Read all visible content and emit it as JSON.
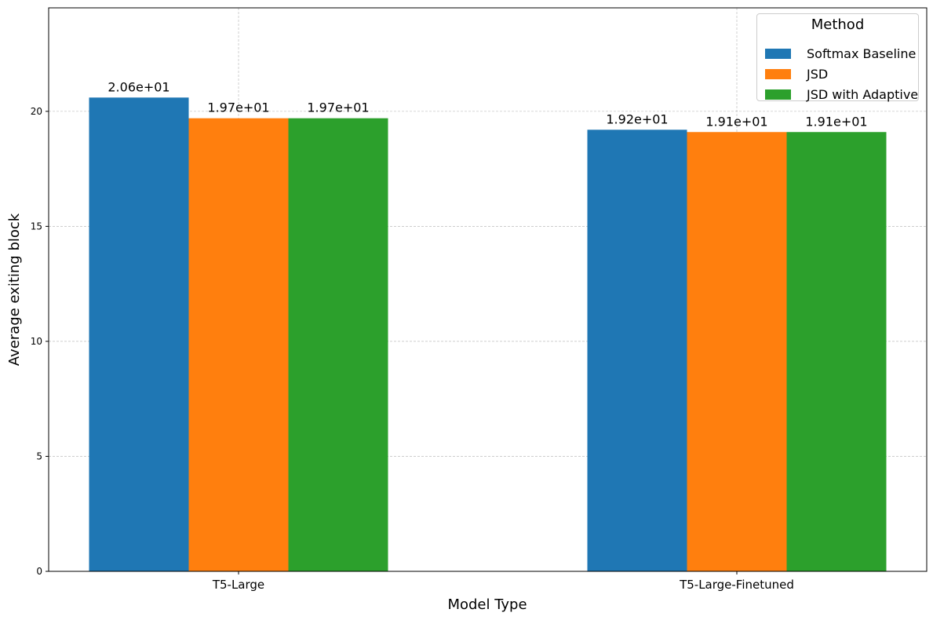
{
  "chart_data": {
    "type": "bar",
    "categories": [
      "T5-Large",
      "T5-Large-Finetuned"
    ],
    "series": [
      {
        "name": "Softmax Baseline",
        "values": [
          20.6,
          19.2
        ],
        "labels": [
          "2.06e+01",
          "1.92e+01"
        ],
        "color": "#1f77b4"
      },
      {
        "name": "JSD",
        "values": [
          19.7,
          19.1
        ],
        "labels": [
          "1.97e+01",
          "1.91e+01"
        ],
        "color": "#ff7f0e"
      },
      {
        "name": "JSD with Adaptive",
        "values": [
          19.7,
          19.1
        ],
        "labels": [
          "1.97e+01",
          "1.91e+01"
        ],
        "color": "#2ca02c"
      }
    ],
    "xlabel": "Model Type",
    "ylabel": "Average exiting block",
    "ylim": [
      0,
      24.5
    ],
    "yticks": [
      0,
      5,
      10,
      15,
      20
    ],
    "grid": true,
    "legend": {
      "title": "Method",
      "position": "top-right"
    }
  }
}
